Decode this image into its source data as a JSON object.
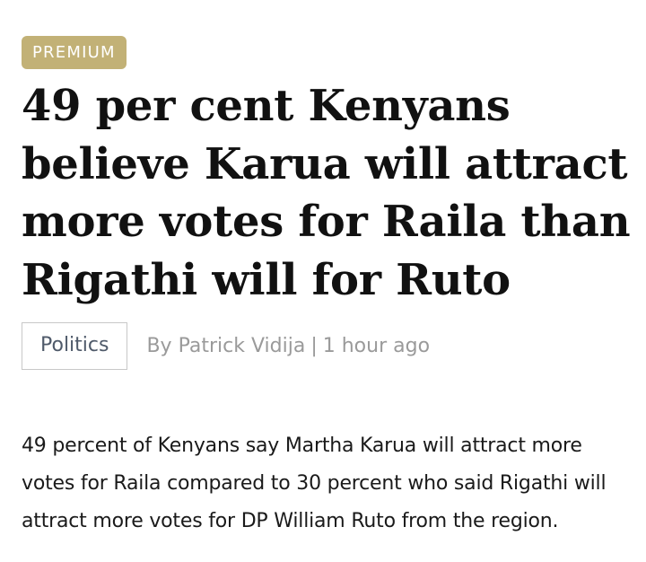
{
  "badge": {
    "label": "PREMIUM",
    "color": "#c2b176"
  },
  "article": {
    "headline": "49 per cent Kenyans believe Karua will attract more votes for Raila than Rigathi will for Ruto",
    "category": "Politics",
    "author_prefix": "By",
    "author": "Patrick Vidija",
    "separator": "|",
    "timestamp": "1 hour ago",
    "summary": "49 percent of Kenyans say Martha Karua will attract more votes for Raila compared to 30 percent who said Rigathi will attract more votes for DP William Ruto from the region."
  }
}
